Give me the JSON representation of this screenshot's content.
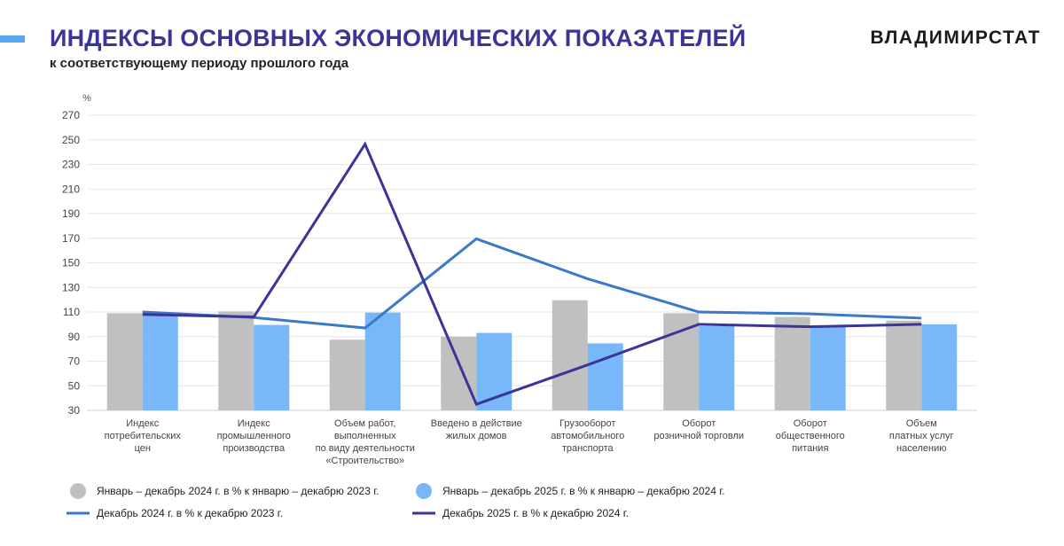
{
  "header": {
    "title": "ИНДЕКСЫ ОСНОВНЫХ ЭКОНОМИЧЕСКИХ ПОКАЗАТЕЛЕЙ",
    "subtitle": "к соответствующему периоду прошлого года",
    "brand": "ВЛАДИМИРСТАТ"
  },
  "colors": {
    "title": "#3a3597",
    "accent": "#5aa5ef",
    "bar_gray": "#c0c0c0",
    "bar_blue": "#78b8f8",
    "line_blue": "#3b78c6",
    "line_navy": "#3a3597"
  },
  "chart_data": {
    "type": "bar",
    "ylabel": "%",
    "ylim": [
      30,
      270
    ],
    "yticks": [
      30,
      50,
      70,
      90,
      110,
      130,
      150,
      170,
      190,
      210,
      230,
      250,
      270
    ],
    "grid": true,
    "legend_position": "bottom",
    "categories": [
      [
        "Индекс",
        "потребительских",
        "цен"
      ],
      [
        "Индекс",
        "промышленного",
        "производства"
      ],
      [
        "Объем работ,",
        "выполненных",
        "по виду деятельности",
        "«Строительство»"
      ],
      [
        "Введено в действие",
        "жилых домов"
      ],
      [
        "Грузооборот",
        "автомобильного",
        "транспорта"
      ],
      [
        "Оборот",
        "розничной торговли"
      ],
      [
        "Оборот",
        "общественного",
        "питания"
      ],
      [
        "Объем",
        "платных услуг",
        "населению"
      ]
    ],
    "series": [
      {
        "name": "Январь – декабрь 2024 г. в % к январю – декабрю 2023 г.",
        "type": "bar",
        "color": "#c0c0c0",
        "values": [
          109,
          110.5,
          87.5,
          90,
          119.5,
          109,
          106,
          103
        ]
      },
      {
        "name": "Январь – декабрь 2025 г. в % к январю – декабрю 2024 г.",
        "type": "bar",
        "color": "#78b8f8",
        "values": [
          107.5,
          99.5,
          109.5,
          93,
          84.5,
          98.5,
          98.5,
          100
        ]
      },
      {
        "name": "Декабрь 2024 г. в % к декабрю 2023 г.",
        "type": "line",
        "color": "#3b78c6",
        "values": [
          110,
          105.5,
          97,
          169.5,
          137,
          110,
          108.5,
          105
        ]
      },
      {
        "name": "Декабрь 2025 г. в % к декабрю 2024 г.",
        "type": "line",
        "color": "#3a3597",
        "values": [
          108,
          106,
          246.5,
          35,
          67,
          100,
          98,
          100
        ]
      }
    ]
  }
}
